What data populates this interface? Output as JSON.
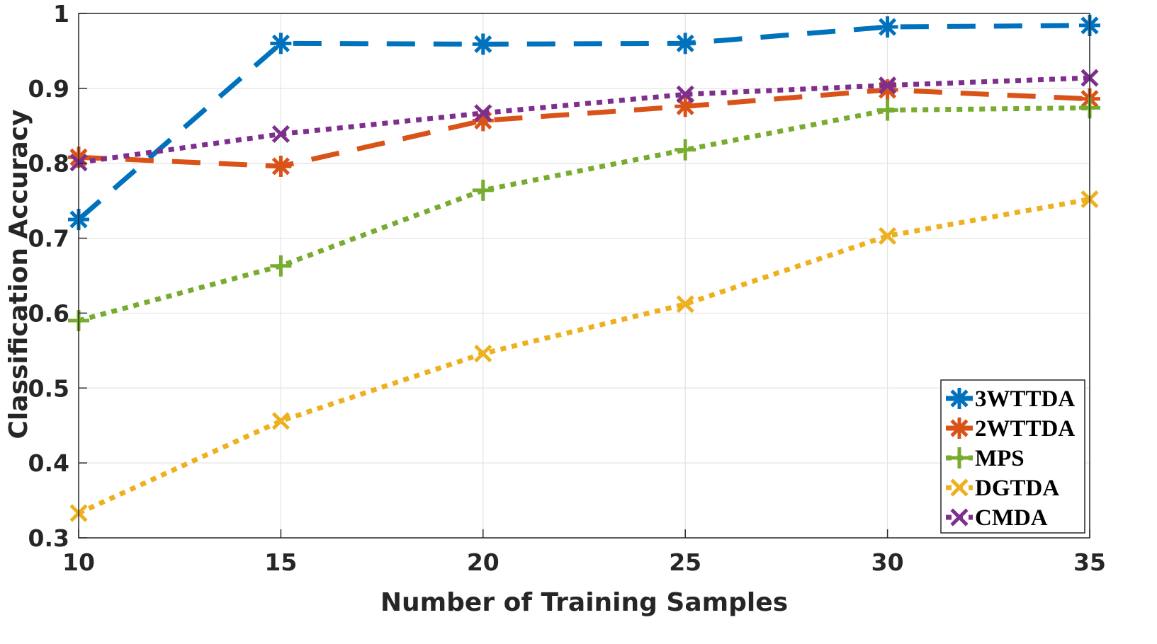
{
  "chart_data": {
    "type": "line",
    "title": "",
    "xlabel": "Number of Training Samples",
    "ylabel": "Classification Accuracy",
    "x": [
      10,
      15,
      20,
      25,
      30,
      35
    ],
    "xlim": [
      10,
      35
    ],
    "ylim": [
      0.3,
      1.0
    ],
    "xticks": [
      "10",
      "15",
      "20",
      "25",
      "30",
      "35"
    ],
    "yticks": [
      "0.3",
      "0.4",
      "0.5",
      "0.6",
      "0.7",
      "0.8",
      "0.9",
      "1"
    ],
    "grid": true,
    "legend_position": "bottom-right",
    "series": [
      {
        "name": "3WTTDA",
        "values": [
          0.725,
          0.96,
          0.959,
          0.96,
          0.982,
          0.984
        ],
        "color": "#0072BD",
        "line_style": "dashed",
        "marker": "asterisk"
      },
      {
        "name": "2WTTDA",
        "values": [
          0.808,
          0.796,
          0.857,
          0.876,
          0.898,
          0.886
        ],
        "color": "#D95319",
        "line_style": "dashed",
        "marker": "asterisk"
      },
      {
        "name": "MPS",
        "values": [
          0.59,
          0.663,
          0.764,
          0.818,
          0.871,
          0.874
        ],
        "color": "#77AC30",
        "line_style": "dotted",
        "marker": "plus"
      },
      {
        "name": "DGTDA",
        "values": [
          0.333,
          0.456,
          0.546,
          0.612,
          0.703,
          0.752
        ],
        "color": "#EDB120",
        "line_style": "dotted",
        "marker": "x"
      },
      {
        "name": "CMDA",
        "values": [
          0.801,
          0.839,
          0.867,
          0.892,
          0.904,
          0.914
        ],
        "color": "#7E2F8E",
        "line_style": "dotted",
        "marker": "x"
      }
    ]
  }
}
